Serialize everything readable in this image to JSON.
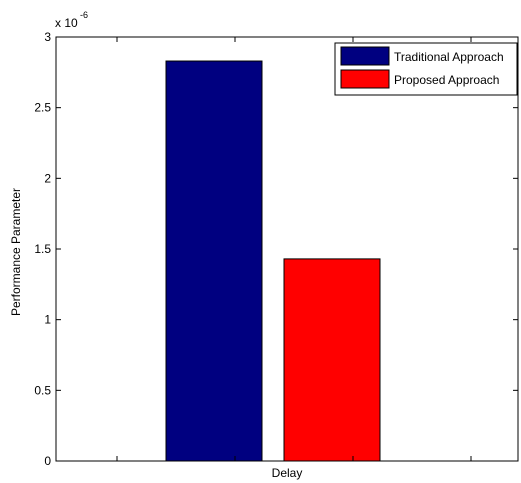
{
  "chart_data": {
    "type": "bar",
    "categories": [
      "Delay"
    ],
    "series": [
      {
        "name": "Traditional Approach",
        "values": [
          2.83e-06
        ],
        "color": "#000080"
      },
      {
        "name": "Proposed Approach",
        "values": [
          1.43e-06
        ],
        "color": "#ff0000"
      }
    ],
    "title": "",
    "xlabel": "",
    "ylabel": "Performance Parameter",
    "ylim": [
      0,
      3e-06
    ],
    "yticks": [
      "0",
      "0.5",
      "1",
      "1.5",
      "2",
      "2.5",
      "3"
    ],
    "ytick_values": [
      0,
      5e-07,
      1e-06,
      1.5e-06,
      2e-06,
      2.5e-06,
      3e-06
    ],
    "exponent_label": {
      "base": "x 10",
      "power": "-6"
    },
    "grid": false,
    "legend_position": "top-right"
  }
}
